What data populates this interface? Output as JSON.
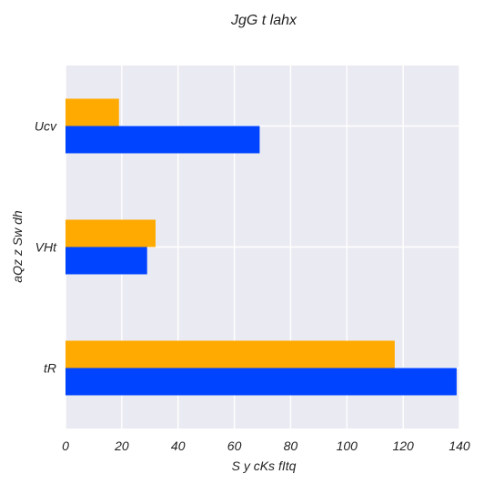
{
  "chart_data": {
    "type": "bar",
    "orientation": "horizontal",
    "title": "JgG t lahx",
    "xlabel": "S y   cKs fItq",
    "ylabel": "aQz z Sw  dh",
    "categories": [
      "tR",
      "VHt",
      "Ucv"
    ],
    "series": [
      {
        "color": "#0044ff",
        "values": [
          139,
          29,
          69
        ]
      },
      {
        "color": "#ffaa00",
        "values": [
          117,
          32,
          19
        ]
      }
    ],
    "xlim": [
      0,
      140
    ],
    "xticks": [
      0,
      20,
      40,
      60,
      80,
      100,
      120,
      140
    ],
    "grid": true,
    "background_color": "#eaeaf2",
    "grid_color": "#ffffff"
  }
}
